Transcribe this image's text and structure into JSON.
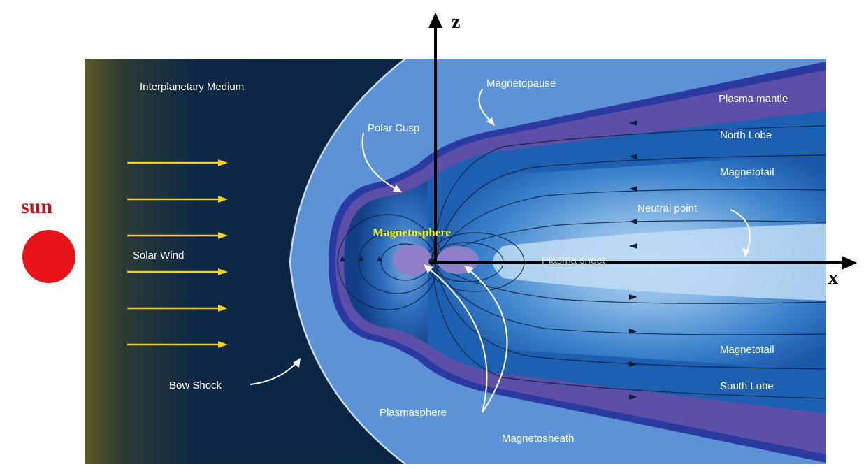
{
  "labels": {
    "sun": "sun",
    "z_axis": "z",
    "x_axis": "x",
    "interplanetary_medium": "Interplanetary Medium",
    "solar_wind": "Solar Wind",
    "bow_shock": "Bow Shock",
    "polar_cusp": "Polar Cusp",
    "magnetopause": "Magnetopause",
    "magnetosphere": "Magnetosphere",
    "plasmasphere": "Plasmasphere",
    "plasma_sheet": "Plasma sheet",
    "magnetosheath": "Magnetosheath",
    "plasma_mantle": "Plasma mantle",
    "north_lobe": "North Lobe",
    "magnetotail_north": "Magnetotail",
    "neutral_point": "Neutral point",
    "magnetotail_south": "Magnetotail",
    "south_lobe": "South Lobe"
  },
  "colors": {
    "sun": "#e8141a",
    "sun_label": "#c0121a",
    "solar_wind_arrows": "#f0d020",
    "magnetosphere_label": "#f2f21a",
    "deep_space": "#0a2545",
    "sheath": "#5b93d6",
    "mantle": "#5d4fa8",
    "lobe": "#1d5fb0",
    "plasma_sheet": "#aad0f0",
    "axes": "#000000"
  },
  "icons": {
    "sun": "red-circle",
    "solar_wind": "yellow-arrow"
  }
}
